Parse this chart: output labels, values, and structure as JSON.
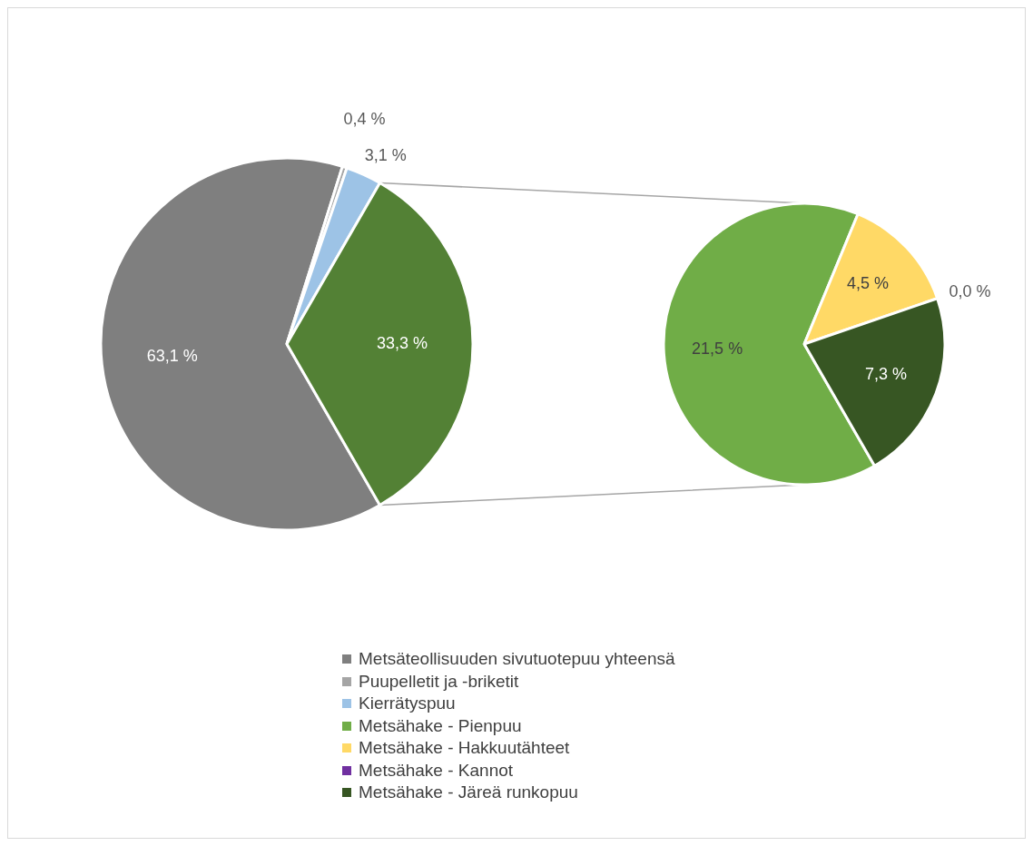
{
  "chart_data": [
    {
      "type": "pie",
      "categories": [
        "Metsäteollisuuden sivutuotepuu yhteensä",
        "Puupelletit ja -briketit",
        "Kierrätyspuu",
        null
      ],
      "values": [
        63.1,
        0.4,
        3.1,
        33.3
      ],
      "colors": [
        "#7f7f7f",
        "#a5a5a5",
        "#9dc3e6",
        "#538135"
      ],
      "value_labels": [
        "63,1 %",
        "0,4 %",
        "3,1 %",
        "33,3 %"
      ],
      "legend": "bottom"
    },
    {
      "type": "pie",
      "categories": [
        "Metsähake - Pienpuu",
        "Metsähake - Hakkuutähteet",
        "Metsähake - Kannot",
        "Metsähake - Järeä runkopuu"
      ],
      "values": [
        21.5,
        4.5,
        0.0,
        7.3
      ],
      "colors": [
        "#70ad47",
        "#ffd966",
        "#7030a0",
        "#375623"
      ],
      "value_labels": [
        "21,5 %",
        "4,5 %",
        "0,0 %",
        "7,3 %"
      ],
      "legend": "bottom"
    }
  ]
}
